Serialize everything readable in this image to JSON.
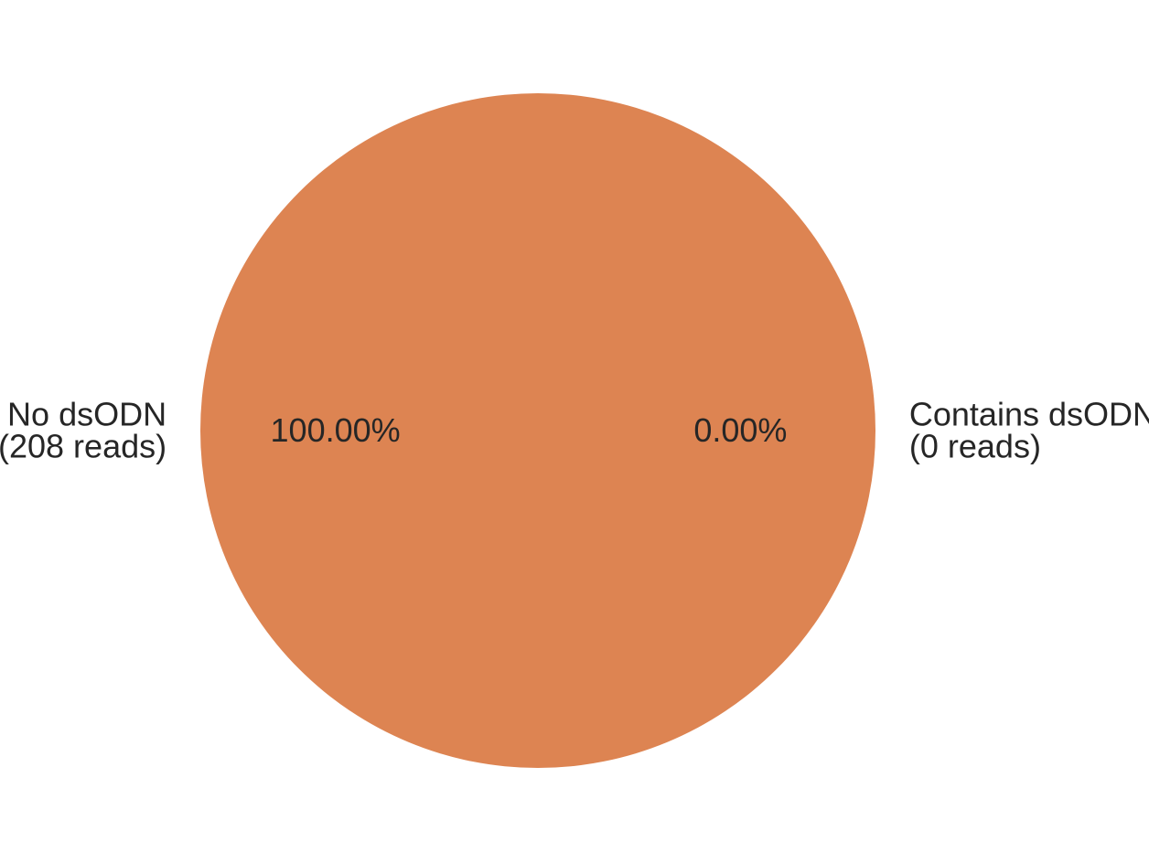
{
  "chart_data": {
    "type": "pie",
    "categories": [
      "Contains dsODN",
      "No dsODN"
    ],
    "values": [
      0,
      208
    ],
    "slices": [
      {
        "label_lines": [
          "Contains dsODN",
          "(0 reads)"
        ],
        "value": 0,
        "pct_label": "0.00%",
        "color": "#4c72b0"
      },
      {
        "label_lines": [
          "No dsODN",
          "(208 reads)"
        ],
        "value": 208,
        "pct_label": "100.00%",
        "color": "#dd8452"
      }
    ],
    "title": "",
    "legend": "none"
  }
}
